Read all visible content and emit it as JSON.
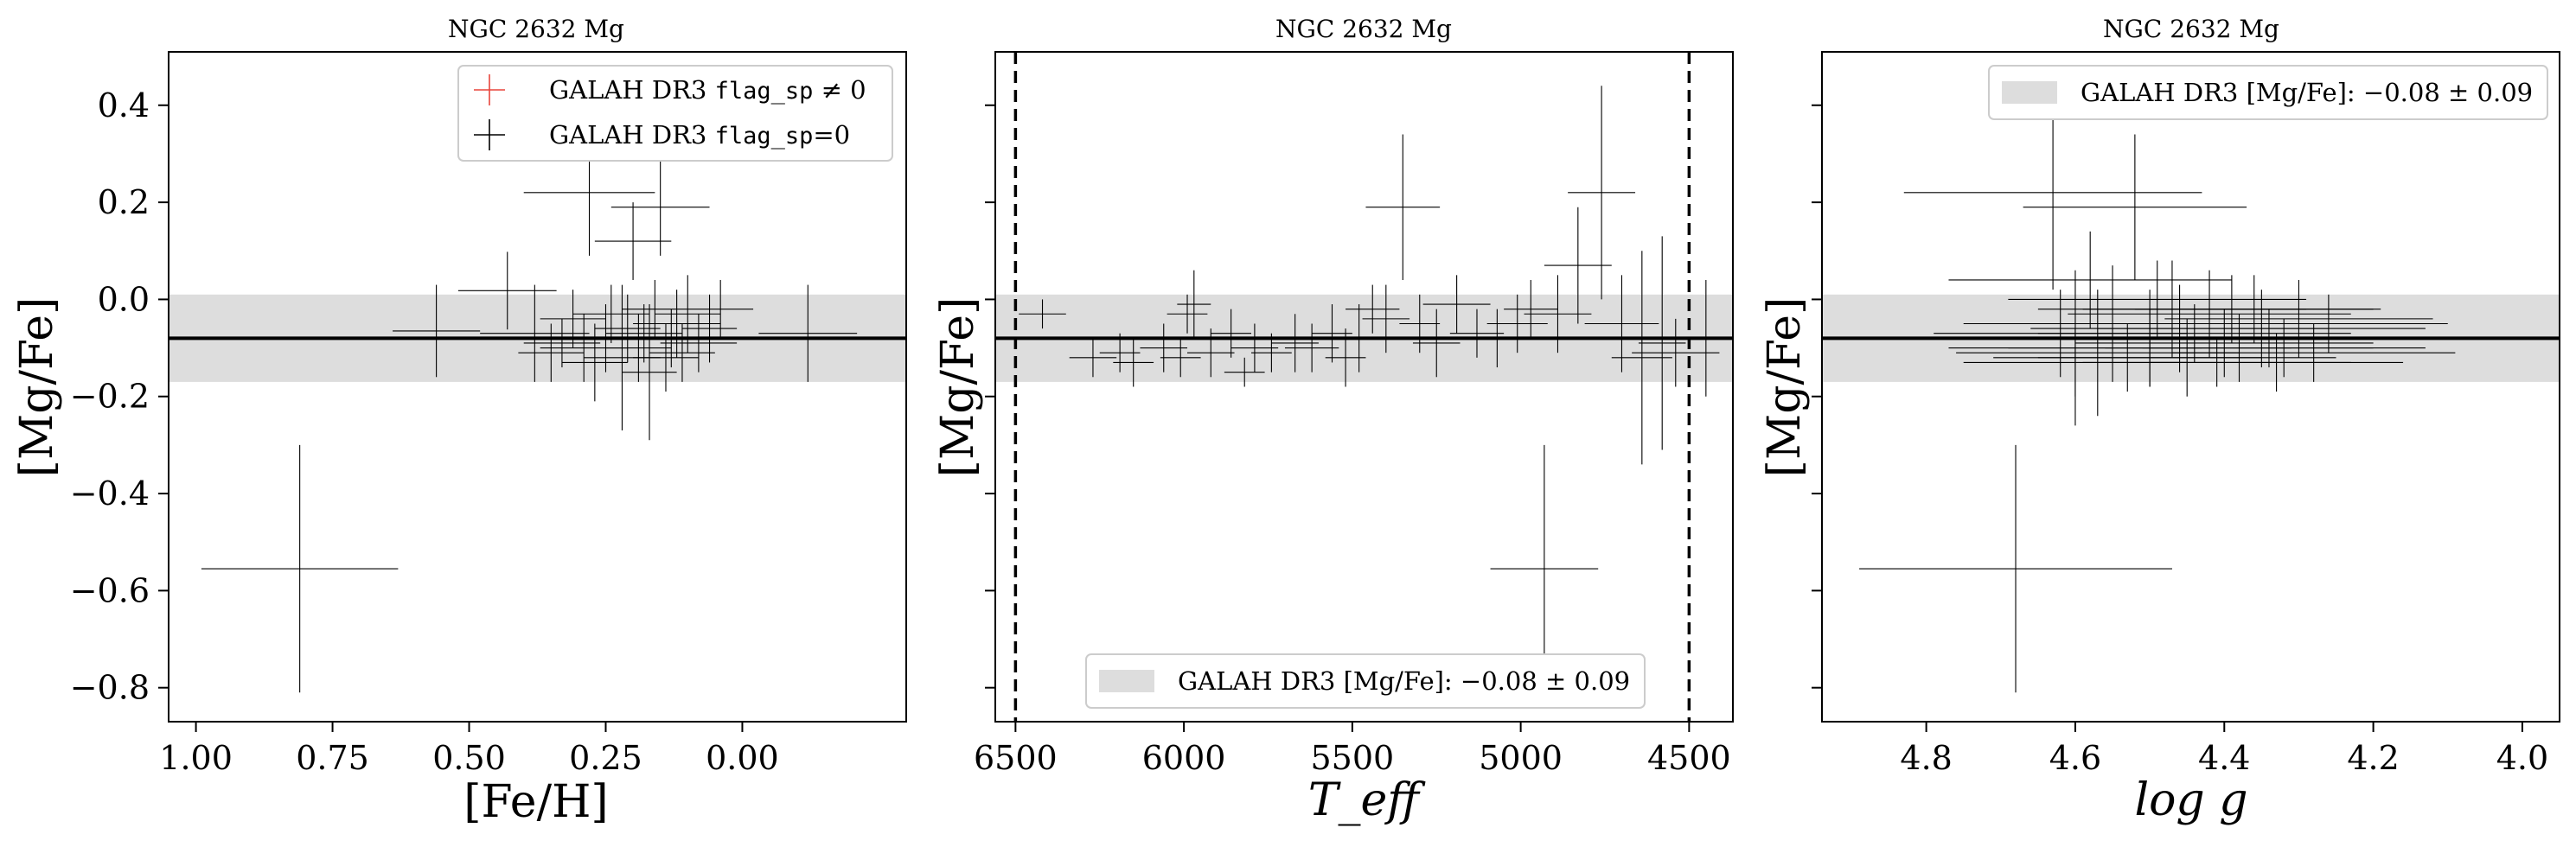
{
  "figure_label": "NGC 2632 Mg",
  "chart_data": [
    {
      "type": "scatter",
      "title": "NGC 2632 Mg",
      "xlabel": "[Fe/H]",
      "ylabel": "[Mg/Fe]",
      "xlim": [
        1.05,
        -0.3
      ],
      "ylim": [
        -0.87,
        0.51
      ],
      "x_ticks": [
        "1.00",
        "0.75",
        "0.50",
        "0.25",
        "0.00"
      ],
      "x_tick_values": [
        1.0,
        0.75,
        0.5,
        0.25,
        0.0
      ],
      "y_ticks": [
        "0.4",
        "0.2",
        "0.0",
        "−0.2",
        "−0.4",
        "−0.6",
        "−0.8"
      ],
      "y_tick_values": [
        0.4,
        0.2,
        0.0,
        -0.2,
        -0.4,
        -0.6,
        -0.8
      ],
      "x_inverted": true,
      "grid": false,
      "legend_position": "top-right",
      "legend": [
        {
          "prefix": "GALAH DR3 ",
          "code": "flag_sp",
          "suffix": " ≠ 0",
          "color": "#e8453c"
        },
        {
          "prefix": "GALAH DR3 ",
          "code": "flag_sp",
          "suffix": "=0",
          "color": "#000000"
        }
      ],
      "reference_line": -0.08,
      "reference_band": [
        -0.17,
        0.01
      ],
      "series": [
        {
          "points": [
            [
              0.81,
              -0.555,
              0.18,
              0.255
            ],
            [
              0.56,
              -0.065,
              0.08,
              0.095
            ],
            [
              0.43,
              0.018,
              0.09,
              0.08
            ],
            [
              0.38,
              -0.07,
              0.1,
              0.1
            ],
            [
              0.35,
              -0.11,
              0.06,
              0.06
            ],
            [
              0.33,
              -0.09,
              0.07,
              0.05
            ],
            [
              0.31,
              -0.04,
              0.06,
              0.06
            ],
            [
              0.29,
              -0.1,
              0.08,
              0.07
            ],
            [
              0.28,
              0.22,
              0.12,
              0.13
            ],
            [
              0.27,
              -0.13,
              0.06,
              0.08
            ],
            [
              0.25,
              -0.08,
              0.05,
              0.07
            ],
            [
              0.24,
              -0.03,
              0.07,
              0.06
            ],
            [
              0.22,
              -0.12,
              0.07,
              0.15
            ],
            [
              0.21,
              -0.06,
              0.06,
              0.07
            ],
            [
              0.2,
              0.12,
              0.07,
              0.08
            ],
            [
              0.19,
              -0.1,
              0.06,
              0.07
            ],
            [
              0.18,
              -0.07,
              0.07,
              0.06
            ],
            [
              0.17,
              -0.15,
              0.05,
              0.14
            ],
            [
              0.16,
              -0.02,
              0.06,
              0.06
            ],
            [
              0.15,
              0.19,
              0.09,
              0.1
            ],
            [
              0.14,
              -0.12,
              0.06,
              0.07
            ],
            [
              0.13,
              -0.08,
              0.07,
              0.06
            ],
            [
              0.12,
              -0.05,
              0.08,
              0.07
            ],
            [
              0.11,
              -0.11,
              0.06,
              0.06
            ],
            [
              0.1,
              -0.03,
              0.06,
              0.08
            ],
            [
              0.08,
              -0.09,
              0.07,
              0.06
            ],
            [
              0.06,
              -0.06,
              0.05,
              0.07
            ],
            [
              0.04,
              -0.02,
              0.06,
              0.06
            ],
            [
              -0.12,
              -0.07,
              0.09,
              0.1
            ]
          ]
        }
      ]
    },
    {
      "type": "scatter",
      "title": "NGC 2632 Mg",
      "xlabel": "T_eff",
      "ylabel": "[Mg/Fe]",
      "xlim": [
        6560,
        4370
      ],
      "ylim": [
        -0.87,
        0.51
      ],
      "x_ticks": [
        "6500",
        "6000",
        "5500",
        "5000",
        "4500"
      ],
      "x_tick_values": [
        6500,
        6000,
        5500,
        5000,
        4500
      ],
      "x_inverted": true,
      "grid": false,
      "legend_position": "bottom-center",
      "legend": [
        {
          "label": "GALAH DR3 [Mg/Fe]: −0.08 ± 0.09",
          "color": "#dddddd"
        }
      ],
      "reference_line": -0.08,
      "reference_band": [
        -0.17,
        0.01
      ],
      "vertical_lines": [
        6500,
        4500
      ],
      "series": [
        {
          "points": [
            [
              6420,
              -0.03,
              70,
              0.03
            ],
            [
              6270,
              -0.12,
              70,
              0.04
            ],
            [
              6190,
              -0.11,
              60,
              0.04
            ],
            [
              6150,
              -0.13,
              60,
              0.05
            ],
            [
              6060,
              -0.1,
              70,
              0.05
            ],
            [
              6010,
              -0.12,
              60,
              0.04
            ],
            [
              5990,
              -0.03,
              60,
              0.04
            ],
            [
              5970,
              -0.01,
              50,
              0.07
            ],
            [
              5920,
              -0.11,
              70,
              0.05
            ],
            [
              5860,
              -0.07,
              60,
              0.05
            ],
            [
              5820,
              -0.15,
              60,
              0.03
            ],
            [
              5790,
              -0.1,
              70,
              0.05
            ],
            [
              5740,
              -0.11,
              60,
              0.04
            ],
            [
              5670,
              -0.09,
              70,
              0.06
            ],
            [
              5620,
              -0.1,
              80,
              0.05
            ],
            [
              5560,
              -0.07,
              60,
              0.06
            ],
            [
              5520,
              -0.12,
              60,
              0.06
            ],
            [
              5480,
              -0.08,
              70,
              0.07
            ],
            [
              5440,
              -0.02,
              80,
              0.05
            ],
            [
              5400,
              -0.04,
              70,
              0.07
            ],
            [
              5350,
              0.19,
              110,
              0.15
            ],
            [
              5300,
              -0.05,
              60,
              0.06
            ],
            [
              5250,
              -0.09,
              70,
              0.07
            ],
            [
              5190,
              -0.01,
              100,
              0.06
            ],
            [
              5130,
              -0.07,
              80,
              0.05
            ],
            [
              5070,
              -0.08,
              110,
              0.06
            ],
            [
              5010,
              -0.05,
              90,
              0.06
            ],
            [
              4970,
              -0.02,
              80,
              0.06
            ],
            [
              4930,
              -0.555,
              160,
              0.255
            ],
            [
              4890,
              -0.03,
              100,
              0.08
            ],
            [
              4830,
              0.07,
              100,
              0.12
            ],
            [
              4760,
              0.22,
              100,
              0.22
            ],
            [
              4700,
              -0.05,
              110,
              0.1
            ],
            [
              4640,
              -0.12,
              90,
              0.22
            ],
            [
              4580,
              -0.09,
              70,
              0.22
            ],
            [
              4540,
              -0.11,
              130,
              0.07
            ],
            [
              4450,
              -0.08,
              50,
              0.12
            ]
          ]
        }
      ]
    },
    {
      "type": "scatter",
      "title": "NGC 2632 Mg",
      "xlabel": "log g",
      "ylabel": "[Mg/Fe]",
      "xlim": [
        4.94,
        3.95
      ],
      "ylim": [
        -0.87,
        0.51
      ],
      "x_ticks": [
        "4.8",
        "4.6",
        "4.4",
        "4.2",
        "4.0"
      ],
      "x_tick_values": [
        4.8,
        4.6,
        4.4,
        4.2,
        4.0
      ],
      "x_inverted": true,
      "grid": false,
      "legend_position": "top-right",
      "legend": [
        {
          "label": "GALAH DR3 [Mg/Fe]: −0.08 ± 0.09",
          "color": "#dddddd"
        }
      ],
      "reference_line": -0.08,
      "reference_band": [
        -0.17,
        0.01
      ],
      "series": [
        {
          "points": [
            [
              4.68,
              -0.555,
              0.21,
              0.255
            ],
            [
              4.63,
              0.22,
              0.2,
              0.2
            ],
            [
              4.52,
              0.19,
              0.15,
              0.15
            ],
            [
              4.6,
              -0.1,
              0.17,
              0.16
            ],
            [
              4.55,
              -0.05,
              0.2,
              0.12
            ],
            [
              4.5,
              -0.08,
              0.21,
              0.1
            ],
            [
              4.45,
              -0.12,
              0.2,
              0.08
            ],
            [
              4.42,
              -0.03,
              0.19,
              0.09
            ],
            [
              4.38,
              -0.1,
              0.18,
              0.07
            ],
            [
              4.35,
              -0.06,
              0.22,
              0.08
            ],
            [
              4.33,
              -0.13,
              0.17,
              0.06
            ],
            [
              4.47,
              -0.02,
              0.18,
              0.1
            ],
            [
              4.57,
              -0.11,
              0.19,
              0.13
            ],
            [
              4.62,
              -0.07,
              0.17,
              0.09
            ],
            [
              4.4,
              -0.09,
              0.2,
              0.07
            ],
            [
              4.3,
              -0.04,
              0.18,
              0.08
            ],
            [
              4.28,
              -0.11,
              0.19,
              0.06
            ],
            [
              4.36,
              -0.02,
              0.16,
              0.07
            ],
            [
              4.53,
              -0.12,
              0.18,
              0.07
            ],
            [
              4.49,
              0.0,
              0.2,
              0.08
            ],
            [
              4.44,
              -0.07,
              0.21,
              0.06
            ],
            [
              4.58,
              0.04,
              0.19,
              0.1
            ],
            [
              4.41,
              -0.13,
              0.18,
              0.05
            ],
            [
              4.34,
              -0.08,
              0.17,
              0.06
            ],
            [
              4.26,
              -0.05,
              0.16,
              0.06
            ],
            [
              4.5,
              -0.1,
              0.19,
              0.08
            ],
            [
              4.46,
              -0.06,
              0.2,
              0.09
            ],
            [
              4.39,
              -0.02,
              0.2,
              0.07
            ],
            [
              4.6,
              -0.13,
              0.15,
              0.07
            ],
            [
              4.32,
              -0.1,
              0.19,
              0.06
            ]
          ]
        }
      ]
    }
  ]
}
